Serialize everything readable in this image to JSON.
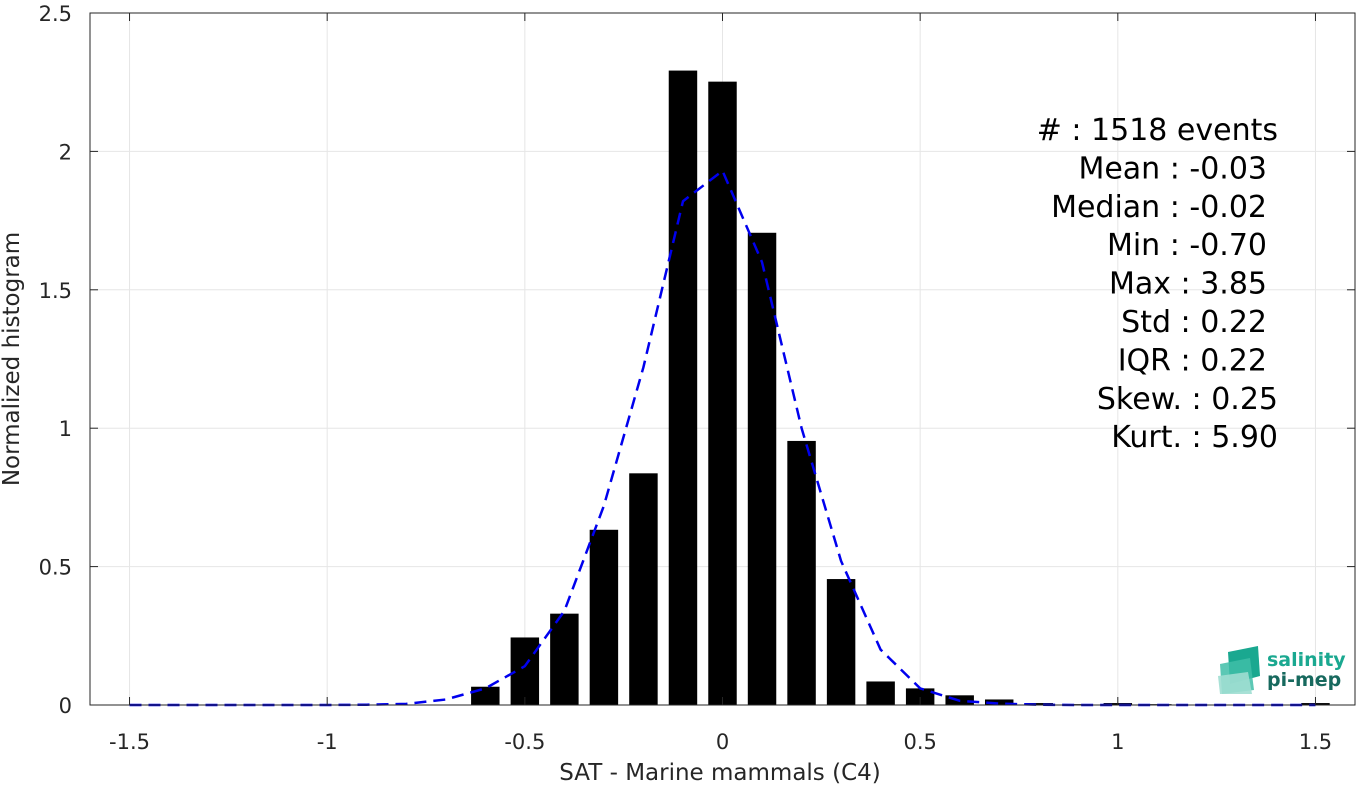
{
  "chart_data": {
    "type": "bar",
    "xlabel": "SAT - Marine mammals (C4)",
    "ylabel": "Normalized histogram",
    "xlim": [
      -1.6,
      1.6
    ],
    "ylim": [
      0,
      2.5
    ],
    "xticks": [
      -1.5,
      -1,
      -0.5,
      0,
      0.5,
      1,
      1.5
    ],
    "xtick_labels": [
      "-1.5",
      "-1",
      "-0.5",
      "0",
      "0.5",
      "1",
      "1.5"
    ],
    "yticks": [
      0,
      0.5,
      1,
      1.5,
      2,
      2.5
    ],
    "ytick_labels": [
      "0",
      "0.5",
      "1",
      "1.5",
      "2",
      "2.5"
    ],
    "grid": true,
    "bar_color": "#000000",
    "fit_color": "#0000ee",
    "bin_width": 0.1,
    "bars": {
      "x": [
        -0.6,
        -0.5,
        -0.4,
        -0.3,
        -0.2,
        -0.1,
        0.0,
        0.1,
        0.2,
        0.3,
        0.4,
        0.5,
        0.6,
        0.7,
        0.8,
        0.9,
        1.0,
        1.1,
        1.2,
        1.3,
        1.4,
        1.5
      ],
      "values": [
        0.066,
        0.244,
        0.33,
        0.633,
        0.837,
        2.292,
        2.252,
        1.706,
        0.954,
        0.455,
        0.085,
        0.06,
        0.035,
        0.02,
        0.007,
        0.003,
        0.007,
        0.003,
        0.0,
        0.0,
        0.0,
        0.007
      ]
    },
    "fit_curve": {
      "style": "dashed",
      "x": [
        -1.5,
        -1.4,
        -1.3,
        -1.2,
        -1.1,
        -1.0,
        -0.9,
        -0.8,
        -0.7,
        -0.6,
        -0.5,
        -0.4,
        -0.3,
        -0.2,
        -0.1,
        0.0,
        0.1,
        0.2,
        0.3,
        0.4,
        0.5,
        0.6,
        0.7,
        0.8,
        0.9,
        1.0,
        1.1,
        1.2,
        1.3,
        1.4,
        1.5
      ],
      "y": [
        0,
        0,
        0,
        0,
        0,
        0,
        0.001,
        0.004,
        0.02,
        0.06,
        0.14,
        0.34,
        0.72,
        1.22,
        1.82,
        1.93,
        1.6,
        1.0,
        0.52,
        0.2,
        0.06,
        0.015,
        0.005,
        0.001,
        0,
        0,
        0,
        0,
        0,
        0,
        0
      ]
    },
    "stats": [
      {
        "label": "#  : 1518 events"
      },
      {
        "label": "Mean : -0.03"
      },
      {
        "label": "Median : -0.02"
      },
      {
        "label": "Min : -0.70"
      },
      {
        "label": "Max : 3.85"
      },
      {
        "label": "Std : 0.22"
      },
      {
        "label": "IQR : 0.22"
      },
      {
        "label": "Skew. : 0.25"
      },
      {
        "label": "Kurt. : 5.90"
      }
    ]
  },
  "logo": {
    "line1": "salinity",
    "line2": "pi-mep",
    "color1": "#1aa890",
    "color2": "#17695e"
  }
}
